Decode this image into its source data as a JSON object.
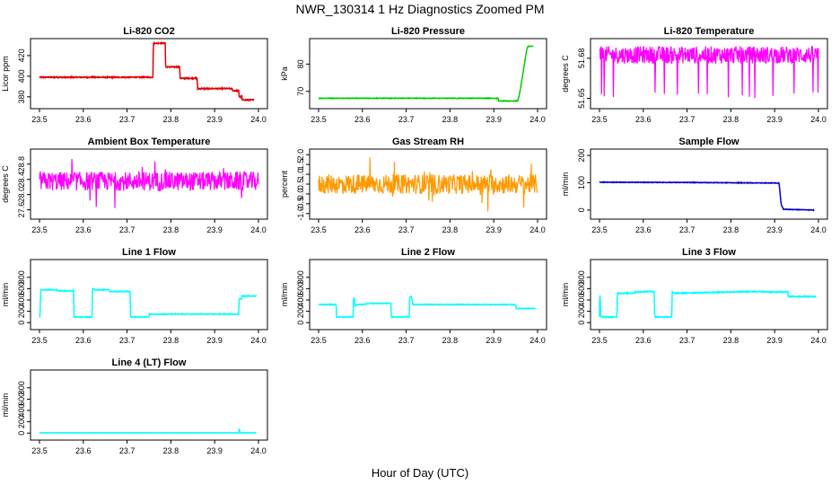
{
  "figure": {
    "title": "NWR_130314  1 Hz Diagnostics Zoomed PM",
    "xlabel": "Hour of Day (UTC)"
  },
  "chart_data": [
    {
      "type": "line",
      "title": "Li-820 CO2",
      "ylabel": "Licor ppm",
      "color": "#e00000",
      "xlim": [
        23.5,
        24.0
      ],
      "ylim": [
        372,
        433
      ],
      "yticks": [
        380,
        400,
        420
      ],
      "xticks": [
        23.5,
        23.6,
        23.7,
        23.8,
        23.9,
        24.0
      ],
      "noise": 0.5,
      "x": [
        23.5,
        23.759,
        23.76,
        23.787,
        23.788,
        23.82,
        23.821,
        23.86,
        23.861,
        23.94,
        23.941,
        23.955,
        23.956,
        23.962,
        23.963,
        23.99
      ],
      "y": [
        399,
        399,
        432,
        432,
        409,
        409,
        398,
        398,
        388,
        388,
        386,
        386,
        380,
        380,
        377,
        377
      ]
    },
    {
      "type": "line",
      "title": "Li-820 Pressure",
      "ylabel": "kPa",
      "color": "#00cc00",
      "xlim": [
        23.5,
        24.0
      ],
      "ylim": [
        65,
        88
      ],
      "yticks": [
        70,
        80
      ],
      "xticks": [
        23.5,
        23.6,
        23.7,
        23.8,
        23.9,
        24.0
      ],
      "noise": 0.1,
      "x": [
        23.5,
        23.91,
        23.911,
        23.955,
        23.96,
        23.975,
        23.978,
        23.99
      ],
      "y": [
        67.5,
        67.5,
        66.5,
        66.5,
        70,
        85,
        86.5,
        86.5
      ]
    },
    {
      "type": "noise",
      "title": "Li-820 Temperature",
      "ylabel": "degrees C",
      "color": "#ff00ff",
      "xlim": [
        23.5,
        24.0
      ],
      "ylim": [
        51.645,
        51.692
      ],
      "yticks": [
        51.65,
        51.68
      ],
      "xticks": [
        23.5,
        23.6,
        23.7,
        23.8,
        23.9,
        24.0
      ],
      "low": 51.676,
      "high": 51.689,
      "dips": [
        51.65,
        51.655
      ]
    },
    {
      "type": "noise",
      "title": "Ambient Box Temperature",
      "ylabel": "degrees C",
      "color": "#ff00ff",
      "xlim": [
        23.5,
        24.0
      ],
      "ylim": [
        27.45,
        29.1
      ],
      "yticks": [
        27.6,
        28.0,
        28.4,
        28.8
      ],
      "xticks": [
        23.5,
        23.6,
        23.7,
        23.8,
        23.9,
        24.0
      ],
      "low": 28.1,
      "high": 28.6,
      "dips": [
        27.5,
        29.0
      ]
    },
    {
      "type": "noise",
      "title": "Gas Stream RH",
      "ylabel": "percent",
      "color": "#ff9900",
      "xlim": [
        23.5,
        24.0
      ],
      "ylim": [
        -1.1,
        2.1
      ],
      "yticks": [
        -1.0,
        -0.5,
        0.0,
        0.5,
        1.0,
        1.5,
        2.0
      ],
      "xticks": [
        23.5,
        23.6,
        23.7,
        23.8,
        23.9,
        24.0
      ],
      "low": 0.0,
      "high": 1.0,
      "dips": [
        -0.9,
        2.0
      ]
    },
    {
      "type": "line",
      "title": "Sample Flow",
      "ylabel": "ml/min",
      "color": "#0000cc",
      "xlim": [
        23.5,
        24.0
      ],
      "ylim": [
        -20,
        210
      ],
      "yticks": [
        0,
        100,
        200
      ],
      "xticks": [
        23.5,
        23.6,
        23.7,
        23.8,
        23.9,
        24.0
      ],
      "noise": 1.0,
      "x": [
        23.5,
        23.7,
        23.8,
        23.9,
        23.91,
        23.915,
        23.92,
        23.99
      ],
      "y": [
        102,
        101,
        100,
        99,
        99,
        20,
        3,
        0
      ]
    },
    {
      "type": "line",
      "title": "Line 1 Flow",
      "ylabel": "ml/min",
      "color": "#00ffff",
      "xlim": [
        23.5,
        24.0
      ],
      "ylim": [
        -60,
        1050
      ],
      "yticks": [
        0,
        200,
        400,
        600,
        800
      ],
      "xticks": [
        23.5,
        23.6,
        23.7,
        23.8,
        23.9,
        24.0
      ],
      "noise": 6,
      "x": [
        23.5,
        23.501,
        23.503,
        23.54,
        23.541,
        23.578,
        23.579,
        23.62,
        23.621,
        23.624,
        23.625,
        23.66,
        23.661,
        23.707,
        23.708,
        23.75,
        23.751,
        23.955,
        23.956,
        23.962,
        23.963,
        23.995
      ],
      "y": [
        100,
        100,
        580,
        580,
        560,
        560,
        100,
        100,
        600,
        600,
        580,
        580,
        550,
        550,
        100,
        100,
        150,
        150,
        420,
        420,
        470,
        470
      ]
    },
    {
      "type": "line",
      "title": "Line 2 Flow",
      "ylabel": "ml/min",
      "color": "#00ffff",
      "xlim": [
        23.5,
        24.0
      ],
      "ylim": [
        -60,
        1050
      ],
      "yticks": [
        0,
        200,
        400,
        600,
        800
      ],
      "xticks": [
        23.5,
        23.6,
        23.7,
        23.8,
        23.9,
        24.0
      ],
      "noise": 5,
      "x": [
        23.5,
        23.54,
        23.541,
        23.579,
        23.58,
        23.582,
        23.583,
        23.59,
        23.6,
        23.62,
        23.621,
        23.665,
        23.666,
        23.707,
        23.708,
        23.712,
        23.715,
        23.8,
        23.95,
        23.951,
        23.995
      ],
      "y": [
        320,
        320,
        100,
        100,
        430,
        430,
        300,
        320,
        320,
        340,
        340,
        340,
        100,
        100,
        460,
        460,
        320,
        320,
        320,
        250,
        250
      ]
    },
    {
      "type": "line",
      "title": "Line 3 Flow",
      "ylabel": "ml/min",
      "color": "#00ffff",
      "xlim": [
        23.5,
        24.0
      ],
      "ylim": [
        -60,
        1050
      ],
      "yticks": [
        0,
        200,
        400,
        600,
        800
      ],
      "xticks": [
        23.5,
        23.6,
        23.7,
        23.8,
        23.9,
        24.0
      ],
      "noise": 8,
      "x": [
        23.5,
        23.501,
        23.503,
        23.54,
        23.541,
        23.58,
        23.581,
        23.62,
        23.625,
        23.626,
        23.665,
        23.666,
        23.668,
        23.8,
        23.85,
        23.9,
        23.93,
        23.931,
        23.995
      ],
      "y": [
        100,
        580,
        100,
        100,
        520,
        520,
        540,
        550,
        550,
        100,
        100,
        560,
        520,
        540,
        550,
        540,
        540,
        460,
        460
      ]
    },
    {
      "type": "line",
      "title": "Line 4 (LT) Flow",
      "ylabel": "ml/min",
      "color": "#00ffff",
      "xlim": [
        23.5,
        24.0
      ],
      "ylim": [
        -60,
        1050
      ],
      "yticks": [
        0,
        200,
        400,
        600,
        800
      ],
      "xticks": [
        23.5,
        23.6,
        23.7,
        23.8,
        23.9,
        24.0
      ],
      "noise": 2,
      "x": [
        23.5,
        23.95,
        23.955,
        23.956,
        23.958,
        23.995
      ],
      "y": [
        5,
        5,
        5,
        80,
        5,
        5
      ]
    }
  ]
}
